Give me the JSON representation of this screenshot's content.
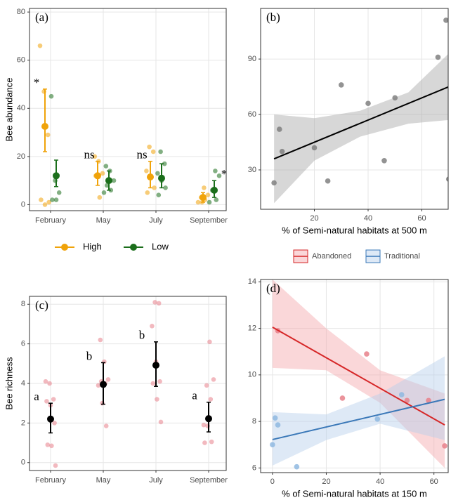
{
  "chart_data": [
    {
      "type": "dotplot",
      "panel": "(a)",
      "ylabel": "Bee abundance",
      "categories": [
        "February",
        "May",
        "July",
        "September"
      ],
      "series": [
        {
          "name": "High",
          "color": "#f0a30a",
          "values": [
            32.5,
            12,
            11.5,
            3
          ],
          "lower": [
            22,
            8,
            7,
            1
          ],
          "upper": [
            48,
            18,
            18,
            5
          ],
          "points": [
            [
              66,
              47,
              29,
              2,
              0,
              1
            ],
            [
              20,
              18,
              13,
              12,
              3
            ],
            [
              24,
              22,
              14,
              12,
              7,
              5
            ],
            [
              7,
              4,
              3,
              2,
              1,
              1
            ]
          ]
        },
        {
          "name": "Low",
          "color": "#1b6e1b",
          "values": [
            12,
            10,
            11,
            6
          ],
          "lower": [
            7.5,
            6,
            7,
            3
          ],
          "upper": [
            18.5,
            14,
            17,
            10
          ],
          "points": [
            [
              45,
              10,
              5,
              2,
              2
            ],
            [
              16,
              14,
              10,
              8,
              6,
              5
            ],
            [
              22,
              17,
              13,
              10,
              7,
              4
            ],
            [
              14,
              12,
              6,
              2,
              1
            ]
          ]
        }
      ],
      "annotations": [
        "*",
        "ns",
        "ns",
        "*"
      ],
      "ylim": [
        -2.5,
        81.5
      ],
      "yticks": [
        0,
        20,
        40,
        60,
        80
      ],
      "grid": true,
      "legend": "bottom"
    },
    {
      "type": "scatter",
      "panel": "(b)",
      "xlabel": "% of Semi-natural habitats at 500 m",
      "series": [
        {
          "color": "#000000",
          "point_color": "#808080",
          "band_color": "#a6a6a6",
          "x": [
            5,
            7,
            8,
            20,
            25,
            30,
            40,
            46,
            50,
            66,
            69,
            70
          ],
          "values": [
            23,
            52,
            40,
            42,
            24,
            76,
            66,
            35,
            69,
            91,
            111,
            25
          ],
          "fit": {
            "x": [
              5,
              70
            ],
            "values": [
              36,
              75
            ]
          },
          "band": {
            "x": [
              5,
              20,
              37,
              55,
              70
            ],
            "lower": [
              12,
              35,
              48,
              55,
              57
            ],
            "upper": [
              60,
              58,
              62,
              72,
              93
            ]
          }
        }
      ],
      "xlim": [
        0,
        69.8
      ],
      "ylim": [
        8.7,
        117.4
      ],
      "xticks": [
        20,
        40,
        60
      ],
      "yticks": [
        30,
        60,
        90
      ],
      "grid": true
    },
    {
      "type": "dotplot",
      "panel": "(c)",
      "ylabel": "Bee richness",
      "categories": [
        "February",
        "May",
        "July",
        "September"
      ],
      "series": [
        {
          "color": "#000000",
          "point_color": "#e8808a",
          "values": [
            2.2,
            3.95,
            4.92,
            2.22
          ],
          "lower": [
            1.5,
            2.95,
            3.85,
            1.55
          ],
          "upper": [
            3.0,
            5.05,
            6.1,
            3.05
          ],
          "points": [
            [
              4.1,
              4.0,
              3.2,
              3.1,
              2.9,
              2.0,
              0.9,
              0.85,
              -0.15
            ],
            [
              6.2,
              5.1,
              4.2,
              4.1,
              4.0,
              3.9,
              3.0,
              1.85
            ],
            [
              8.1,
              8.05,
              6.9,
              5.1,
              4.1,
              4.0,
              3.2,
              2.05
            ],
            [
              6.1,
              4.2,
              3.9,
              3.2,
              1.9,
              1.85,
              1.05,
              1.0
            ]
          ]
        }
      ],
      "annotations": [
        "a",
        "b",
        "b",
        "a"
      ],
      "ylim": [
        -0.4,
        8.4
      ],
      "yticks": [
        0,
        2,
        4,
        6,
        8
      ],
      "grid": true
    },
    {
      "type": "scatter",
      "panel": "(d)",
      "xlabel": "% of Semi-natural habitats at 150 m",
      "series": [
        {
          "name": "Abandoned",
          "color": "#d62728",
          "point_color": "#e8808a",
          "band_color": "#f4a6aa",
          "x": [
            2,
            26,
            35,
            50,
            58,
            64
          ],
          "values": [
            11.9,
            9.0,
            10.9,
            8.9,
            8.9,
            6.95
          ],
          "fit": {
            "x": [
              0,
              64
            ],
            "values": [
              12.05,
              7.85
            ]
          },
          "band": {
            "x": [
              0,
              20,
              40,
              64
            ],
            "lower": [
              10.3,
              10.2,
              8.8,
              6.0
            ],
            "upper": [
              14.1,
              12.0,
              10.2,
              9.2
            ]
          }
        },
        {
          "name": "Traditional",
          "color": "#3a78b8",
          "point_color": "#8fb8e0",
          "band_color": "#b5cfea",
          "x": [
            0,
            1,
            2,
            9,
            39,
            48
          ],
          "values": [
            7.0,
            8.15,
            7.85,
            6.05,
            8.1,
            9.15
          ],
          "fit": {
            "x": [
              0,
              64
            ],
            "values": [
              7.22,
              8.95
            ]
          },
          "band": {
            "x": [
              0,
              20,
              40,
              64
            ],
            "lower": [
              6.1,
              7.2,
              7.9,
              7.2
            ],
            "upper": [
              8.4,
              8.3,
              9.2,
              10.8
            ]
          }
        }
      ],
      "xlim": [
        -4.4,
        65.3
      ],
      "ylim": [
        5.8,
        14.1
      ],
      "xticks": [
        0,
        20,
        40,
        60
      ],
      "yticks": [
        6,
        8,
        10,
        12,
        14
      ],
      "grid": true,
      "legend": "top"
    }
  ]
}
